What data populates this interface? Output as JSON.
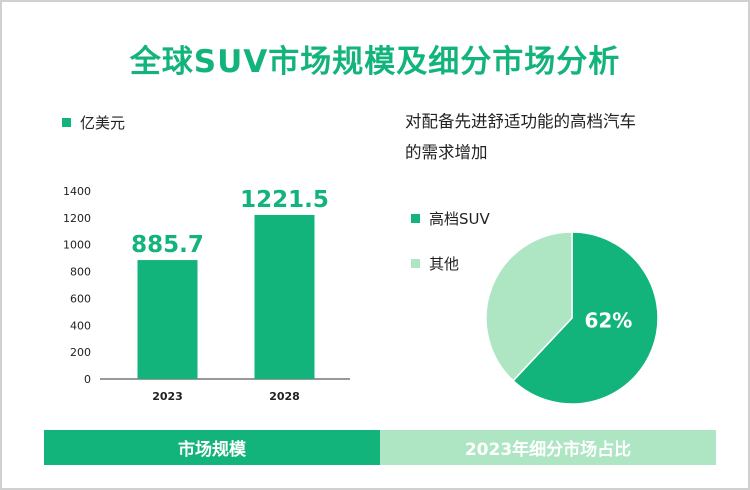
{
  "title": "全球SUV市场规模及细分市场分析",
  "colors": {
    "primary": "#13b47b",
    "secondary": "#aee6c4",
    "axis": "#333333"
  },
  "left": {
    "unit_legend": "亿美元"
  },
  "right": {
    "heading": "对配备先进舒适功能的高档汽车的需求增加",
    "legend": [
      "高档SUV",
      "其他"
    ],
    "slice_label": "62%"
  },
  "footer": {
    "left_label": "市场规模",
    "right_label": "2023年细分市场占比"
  },
  "chart_data": [
    {
      "type": "bar",
      "categories": [
        "2023",
        "2028"
      ],
      "series": [
        {
          "name": "亿美元",
          "values": [
            885.7,
            1221.5
          ]
        }
      ],
      "value_labels": [
        "885.7",
        "1221.5"
      ],
      "ylim": [
        0,
        1400
      ],
      "yticks": [
        0,
        200,
        400,
        600,
        800,
        1000,
        1200,
        1400
      ],
      "xlabel": "",
      "ylabel": "",
      "grid": false,
      "legend_position": "top-left"
    },
    {
      "type": "pie",
      "title": "对配备先进舒适功能的高档汽车的需求增加",
      "labels": [
        "高档SUV",
        "其他"
      ],
      "values": [
        62,
        38
      ],
      "data_labels": [
        "62%",
        ""
      ],
      "legend_position": "left"
    }
  ]
}
